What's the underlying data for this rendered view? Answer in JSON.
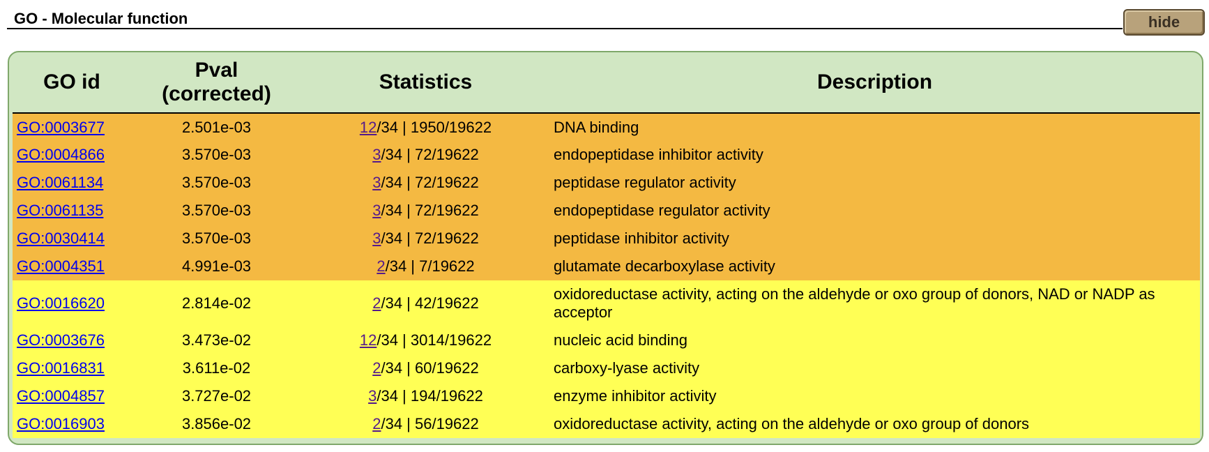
{
  "section": {
    "title": "GO - Molecular function",
    "hide_label": "hide"
  },
  "table": {
    "headers": {
      "go_id": "GO id",
      "pval_line1": "Pval",
      "pval_line2": "(corrected)",
      "statistics": "Statistics",
      "description": "Description"
    },
    "row_colors": {
      "high": "#f4b942",
      "low": "#ffff55"
    },
    "rows": [
      {
        "go_id": "GO:0003677",
        "pval": "2.501e-03",
        "count": "12",
        "stat_rest": "/34 | 1950/19622",
        "description": "DNA binding",
        "group": "high"
      },
      {
        "go_id": "GO:0004866",
        "pval": "3.570e-03",
        "count": "3",
        "stat_rest": "/34 | 72/19622",
        "description": "endopeptidase inhibitor activity",
        "group": "high"
      },
      {
        "go_id": "GO:0061134",
        "pval": "3.570e-03",
        "count": "3",
        "stat_rest": "/34 | 72/19622",
        "description": "peptidase regulator activity",
        "group": "high"
      },
      {
        "go_id": "GO:0061135",
        "pval": "3.570e-03",
        "count": "3",
        "stat_rest": "/34 | 72/19622",
        "description": "endopeptidase regulator activity",
        "group": "high"
      },
      {
        "go_id": "GO:0030414",
        "pval": "3.570e-03",
        "count": "3",
        "stat_rest": "/34 | 72/19622",
        "description": "peptidase inhibitor activity",
        "group": "high"
      },
      {
        "go_id": "GO:0004351",
        "pval": "4.991e-03",
        "count": "2",
        "stat_rest": "/34 | 7/19622",
        "description": "glutamate decarboxylase activity",
        "group": "high"
      },
      {
        "go_id": "GO:0016620",
        "pval": "2.814e-02",
        "count": "2",
        "stat_rest": "/34 | 42/19622",
        "description": "oxidoreductase activity, acting on the aldehyde or oxo group of donors, NAD or NADP as acceptor",
        "group": "low"
      },
      {
        "go_id": "GO:0003676",
        "pval": "3.473e-02",
        "count": "12",
        "stat_rest": "/34 | 3014/19622",
        "description": "nucleic acid binding",
        "group": "low"
      },
      {
        "go_id": "GO:0016831",
        "pval": "3.611e-02",
        "count": "2",
        "stat_rest": "/34 | 60/19622",
        "description": "carboxy-lyase activity",
        "group": "low"
      },
      {
        "go_id": "GO:0004857",
        "pval": "3.727e-02",
        "count": "3",
        "stat_rest": "/34 | 194/19622",
        "description": "enzyme inhibitor activity",
        "group": "low"
      },
      {
        "go_id": "GO:0016903",
        "pval": "3.856e-02",
        "count": "2",
        "stat_rest": "/34 | 56/19622",
        "description": "oxidoreductase activity, acting on the aldehyde or oxo group of donors",
        "group": "low"
      }
    ]
  }
}
